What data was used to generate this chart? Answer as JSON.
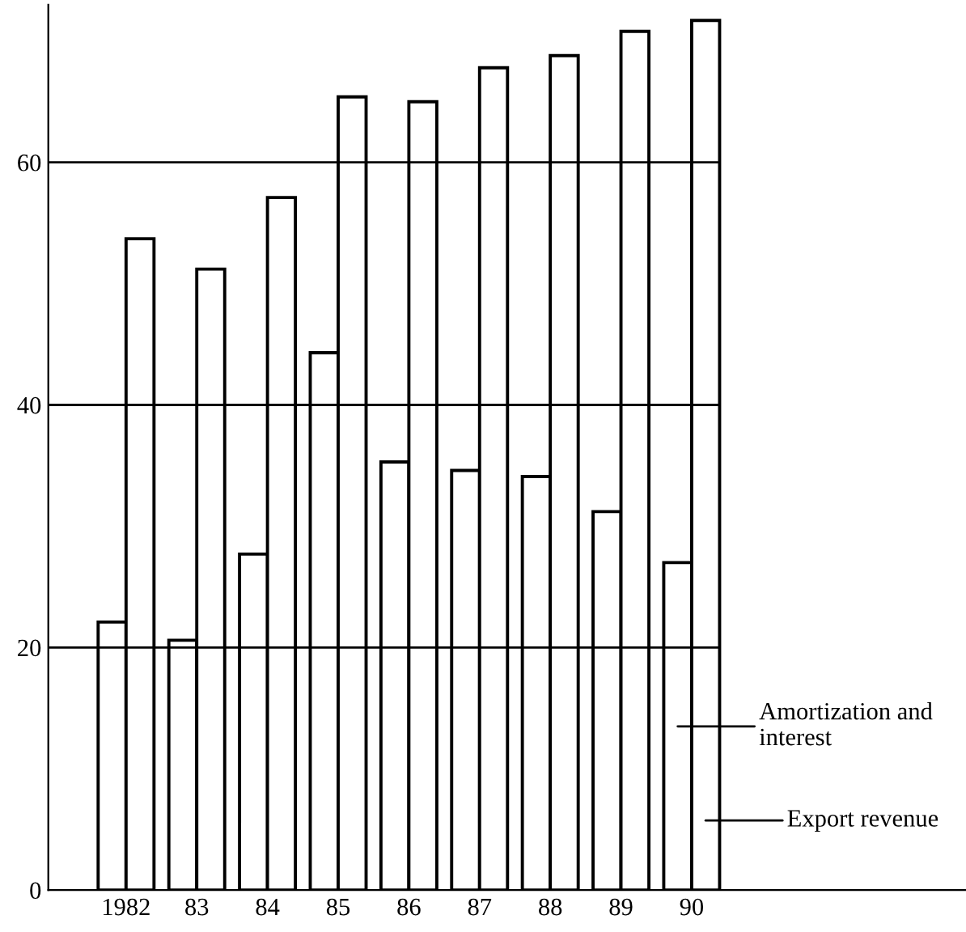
{
  "chart_data": {
    "type": "bar",
    "categories": [
      "1982",
      "83",
      "84",
      "85",
      "86",
      "87",
      "88",
      "89",
      "90"
    ],
    "series": [
      {
        "name": "Amortization and interest",
        "values": [
          22.1,
          20.6,
          27.7,
          44.3,
          35.3,
          34.6,
          34.1,
          31.2,
          27.0
        ]
      },
      {
        "name": "Export revenue",
        "values": [
          53.7,
          51.2,
          57.1,
          65.4,
          65.0,
          67.8,
          68.8,
          70.8,
          71.7
        ]
      }
    ],
    "ylim": [
      0,
      73
    ],
    "yticks": [
      0,
      20,
      40,
      60
    ],
    "grid": "y",
    "legend": "right"
  }
}
